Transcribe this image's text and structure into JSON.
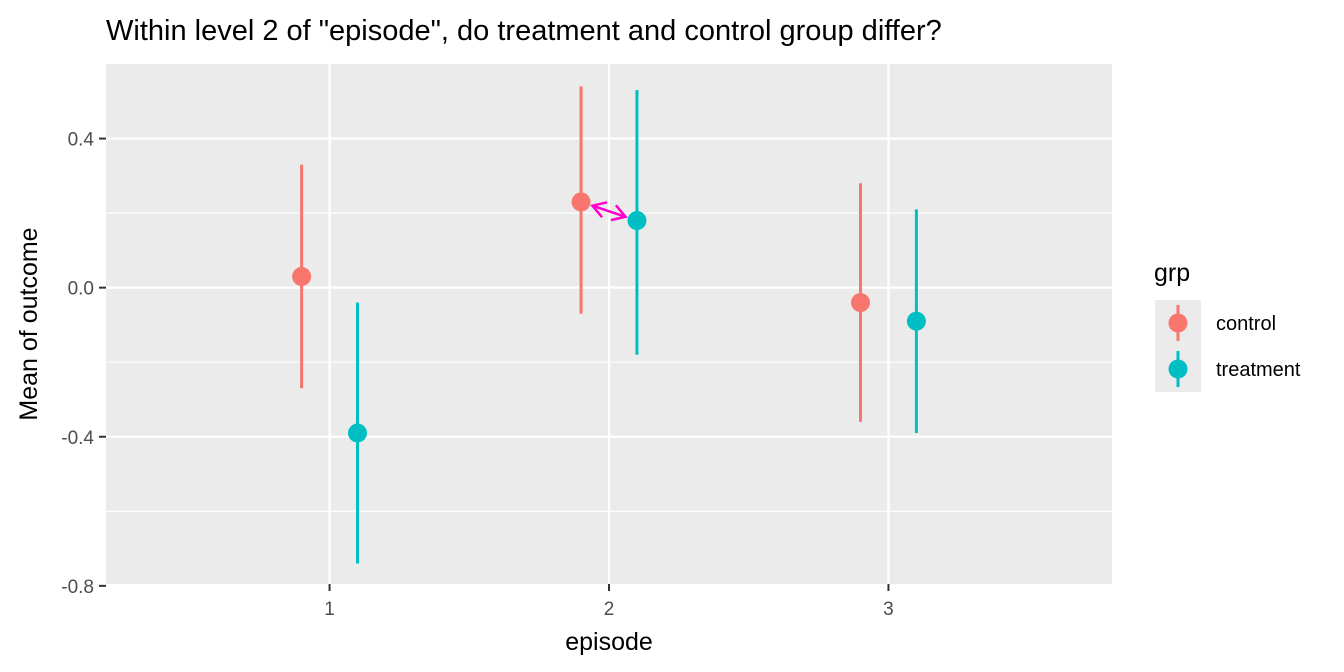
{
  "chart_data": {
    "type": "pointrange",
    "title": "Within level 2 of \"episode\", do treatment and control group differ?",
    "xlabel": "episode",
    "ylabel": "Mean of outcome",
    "categories": [
      "1",
      "2",
      "3"
    ],
    "x_ticks": [
      "1",
      "2",
      "3"
    ],
    "y_ticks": [
      0.4,
      0.0,
      -0.4,
      -0.8
    ],
    "y_tick_labels": [
      "0.4",
      "0.0",
      "-0.4",
      "-0.8"
    ],
    "ylim": [
      -0.795,
      0.6
    ],
    "grid": true,
    "legend": {
      "title": "grp",
      "position": "right",
      "entries": [
        "control",
        "treatment"
      ]
    },
    "series": [
      {
        "name": "control",
        "color": "#F8766D",
        "points": [
          {
            "x": "1",
            "mean": 0.03,
            "low": -0.27,
            "high": 0.33
          },
          {
            "x": "2",
            "mean": 0.23,
            "low": -0.07,
            "high": 0.54
          },
          {
            "x": "3",
            "mean": -0.04,
            "low": -0.36,
            "high": 0.28
          }
        ]
      },
      {
        "name": "treatment",
        "color": "#00BFC4",
        "points": [
          {
            "x": "1",
            "mean": -0.39,
            "low": -0.74,
            "high": -0.04
          },
          {
            "x": "2",
            "mean": 0.18,
            "low": -0.18,
            "high": 0.53
          },
          {
            "x": "3",
            "mean": -0.09,
            "low": -0.39,
            "high": 0.21
          }
        ]
      }
    ],
    "annotation": {
      "type": "double-arrow",
      "color": "#FF00CC",
      "category": "2",
      "from_series": "control",
      "to_series": "treatment"
    }
  }
}
